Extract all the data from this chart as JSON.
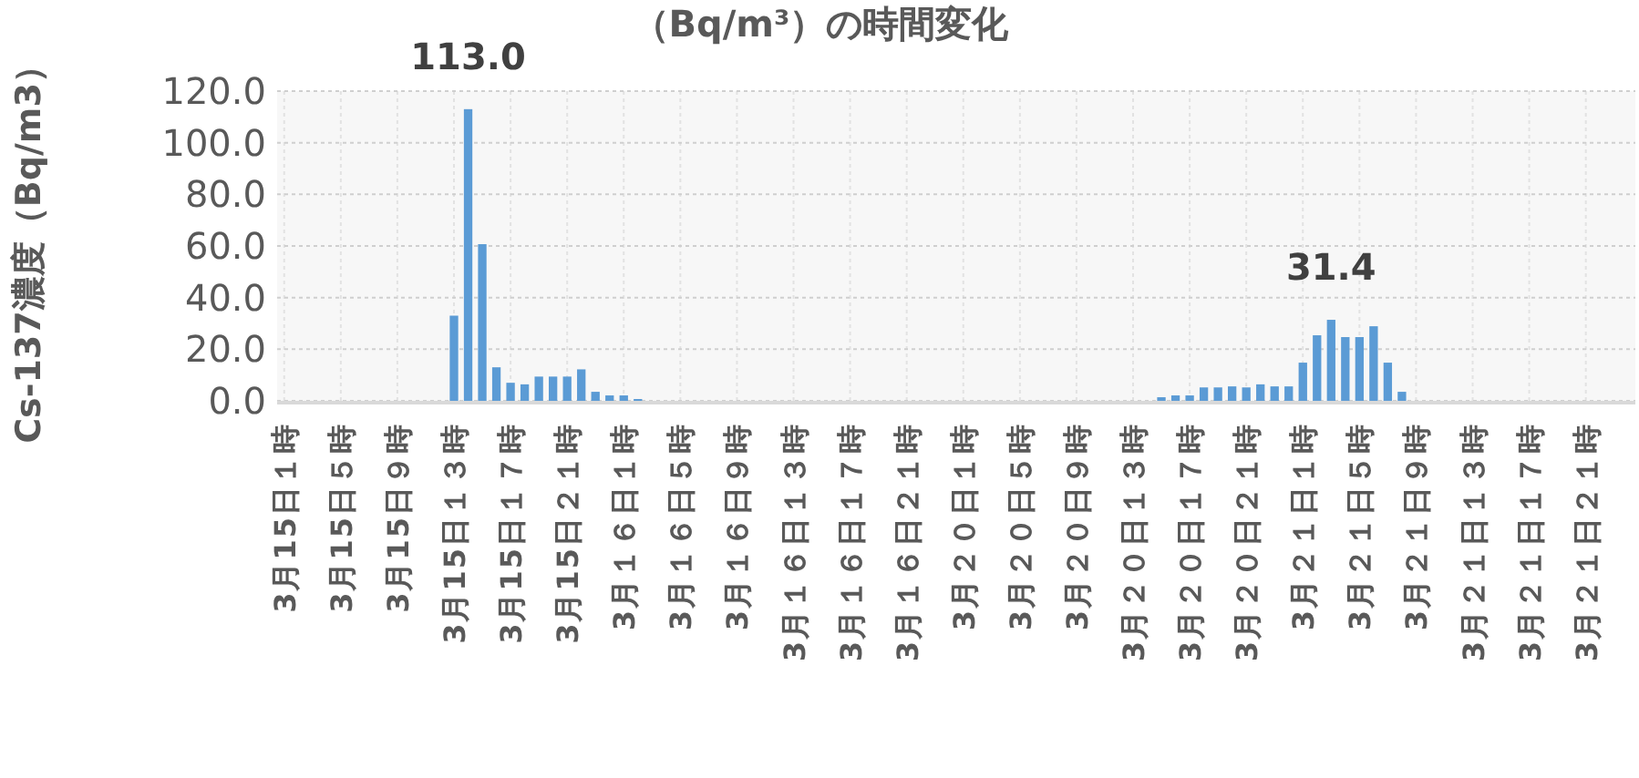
{
  "chart_data": {
    "type": "bar",
    "title": "（Bq/m³）の時間変化",
    "ylabel": "Cs-137濃度（Bq/m3）",
    "categories": [
      "3月15日１時",
      null,
      null,
      null,
      "3月15日５時",
      null,
      null,
      null,
      "3月15日９時",
      null,
      null,
      null,
      "3月15日１３時",
      null,
      null,
      null,
      "3月15日１７時",
      null,
      null,
      null,
      "3月15日２１時",
      null,
      null,
      null,
      "3月１６日１時",
      null,
      null,
      null,
      "3月１６日５時",
      null,
      null,
      null,
      "3月１６日９時",
      null,
      null,
      null,
      "3月１６日１３時",
      null,
      null,
      null,
      "3月１６日１７時",
      null,
      null,
      null,
      "3月１６日２１時",
      null,
      null,
      null,
      "3月２０日１時",
      null,
      null,
      null,
      "3月２０日５時",
      null,
      null,
      null,
      "3月２０日９時",
      null,
      null,
      null,
      "3月２０日１３時",
      null,
      null,
      null,
      "3月２０日１７時",
      null,
      null,
      null,
      "3月２０日２１時",
      null,
      null,
      null,
      "3月２１日１時",
      null,
      null,
      null,
      "3月２１日５時",
      null,
      null,
      null,
      "3月２１日９時",
      null,
      null,
      null,
      "3月２１日１３時",
      null,
      null,
      null,
      "3月２１日１７時",
      null,
      null,
      null,
      "3月２１日２１時",
      null,
      null,
      null
    ],
    "values": [
      null,
      null,
      null,
      null,
      null,
      null,
      null,
      null,
      null,
      null,
      null,
      null,
      33,
      113.0,
      60.7,
      13,
      7,
      6.4,
      9.4,
      9.4,
      9.4,
      12.2,
      3.5,
      2.1,
      2.1,
      0.7,
      null,
      null,
      null,
      null,
      null,
      null,
      null,
      null,
      null,
      null,
      null,
      null,
      null,
      null,
      null,
      null,
      null,
      null,
      null,
      null,
      null,
      null,
      null,
      null,
      null,
      null,
      null,
      null,
      null,
      null,
      null,
      null,
      null,
      null,
      null,
      null,
      1.4,
      2.1,
      2.1,
      5.2,
      5.2,
      5.6,
      5.2,
      6.4,
      5.6,
      5.6,
      14.8,
      25.4,
      31.4,
      24.7,
      24.7,
      28.9,
      14.8,
      3.5,
      null,
      null,
      null,
      null,
      null,
      null,
      null,
      null,
      null,
      null,
      null,
      null,
      null,
      null,
      null,
      null
    ],
    "value_labels": [
      null,
      null,
      null,
      null,
      null,
      null,
      null,
      null,
      null,
      null,
      null,
      null,
      null,
      "113.0",
      null,
      null,
      null,
      null,
      null,
      null,
      null,
      null,
      null,
      null,
      null,
      null,
      null,
      null,
      null,
      null,
      null,
      null,
      null,
      null,
      null,
      null,
      null,
      null,
      null,
      null,
      null,
      null,
      null,
      null,
      null,
      null,
      null,
      null,
      null,
      null,
      null,
      null,
      null,
      null,
      null,
      null,
      null,
      null,
      null,
      null,
      null,
      null,
      null,
      null,
      null,
      null,
      null,
      null,
      null,
      null,
      null,
      null,
      null,
      null,
      "31.4",
      null,
      null,
      null,
      null,
      null,
      null,
      null,
      null,
      null,
      null,
      null,
      null,
      null,
      null,
      null,
      null,
      null,
      null,
      null,
      null,
      null
    ],
    "color": "#5b9bd5",
    "ylim": [
      0,
      120
    ],
    "yticks": [
      {
        "value": 0,
        "label": "0.0"
      },
      {
        "value": 20,
        "label": "20.0"
      },
      {
        "value": 40,
        "label": "40.0"
      },
      {
        "value": 60,
        "label": "60.0"
      },
      {
        "value": 80,
        "label": "80.0"
      },
      {
        "value": 100,
        "label": "100.0"
      },
      {
        "value": 120,
        "label": "120.0"
      }
    ],
    "grid": true
  }
}
